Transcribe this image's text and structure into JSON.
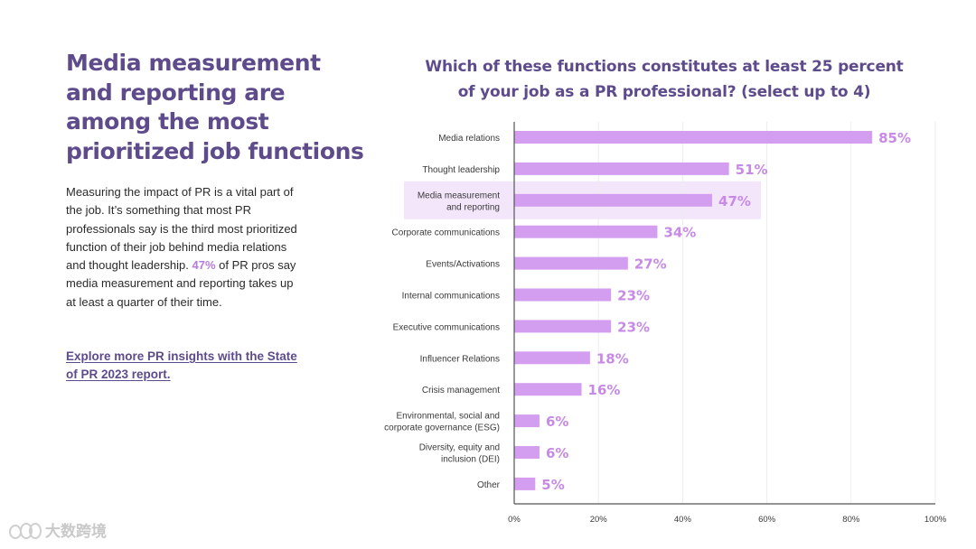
{
  "left_panel": {
    "headline": "Media measurement and reporting are among the most prioritized job functions",
    "body_part1": "Measuring the impact of PR is a vital part of the job. It’s something that most PR professionals say is the third most prioritized function of their job behind media relations and thought leadership.",
    "body_highlight": "47%",
    "body_part2": "of PR pros say media measurement and reporting takes up at least a quarter of their time.",
    "cta_link": "Explore more PR insights with the State of PR 2023 report."
  },
  "watermark": {
    "text": "大数跨境",
    "icon": "watermark-logo-icon"
  },
  "colors": {
    "accent_purple": "#5e4b8b",
    "bar": "#d49ef0",
    "value_label": "#c78ae6",
    "highlight_band": "#f3e6fb",
    "axis": "#555555"
  },
  "chart_data": {
    "type": "bar",
    "orientation": "horizontal",
    "title": "Which of these functions constitutes at least 25 percent of your job as a PR professional? (select up to 4)",
    "categories": [
      "Media relations",
      "Thought leadership",
      "Media measurement and reporting",
      "Corporate communications",
      "Events/Activations",
      "Internal communications",
      "Executive communications",
      "Influencer Relations",
      "Crisis management",
      "Environmental, social and corporate governance (ESG)",
      "Diversity, equity and inclusion (DEI)",
      "Other"
    ],
    "category_lines": [
      [
        "Media relations"
      ],
      [
        "Thought leadership"
      ],
      [
        "Media measurement",
        "and reporting"
      ],
      [
        "Corporate communications"
      ],
      [
        "Events/Activations"
      ],
      [
        "Internal communications"
      ],
      [
        "Executive communications"
      ],
      [
        "Influencer Relations"
      ],
      [
        "Crisis management"
      ],
      [
        "Environmental, social and",
        "corporate governance (ESG)"
      ],
      [
        "Diversity, equity and",
        "inclusion (DEI)"
      ],
      [
        "Other"
      ]
    ],
    "values": [
      85,
      51,
      47,
      34,
      27,
      23,
      23,
      18,
      16,
      6,
      6,
      5
    ],
    "value_labels": [
      "85%",
      "51%",
      "47%",
      "34%",
      "27%",
      "23%",
      "23%",
      "18%",
      "16%",
      "6%",
      "6%",
      "5%"
    ],
    "highlighted_category": "Media measurement and reporting",
    "xlim": [
      0,
      100
    ],
    "x_ticks": [
      0,
      20,
      40,
      60,
      80,
      100
    ],
    "x_tick_labels": [
      "0%",
      "20%",
      "40%",
      "60%",
      "80%",
      "100%"
    ],
    "grid": true,
    "legend": "none"
  }
}
